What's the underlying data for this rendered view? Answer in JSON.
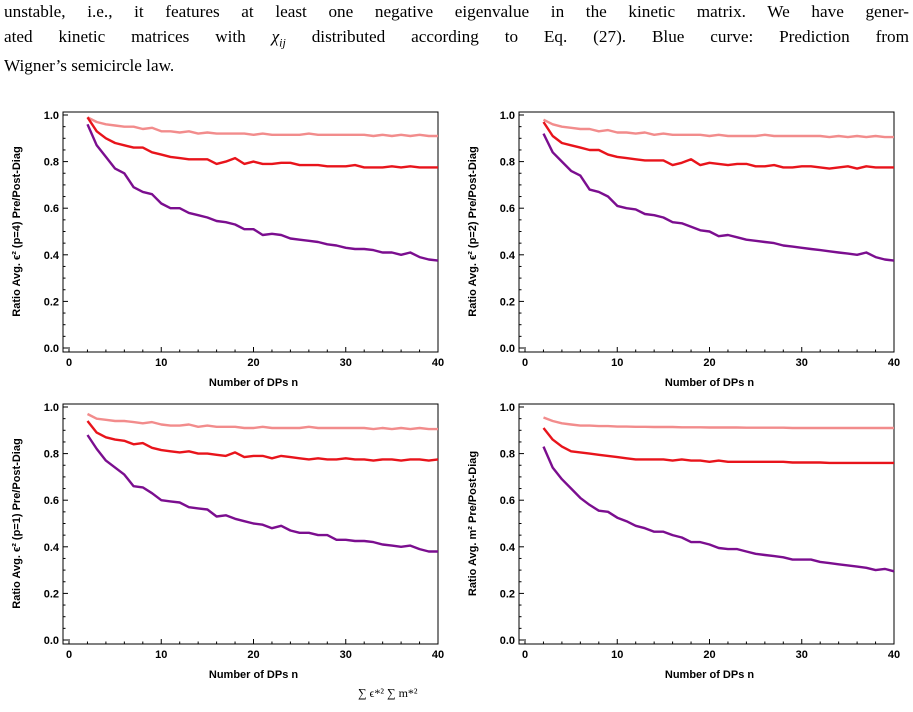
{
  "caption": {
    "line1": "unstable, i.e., it features at least one negative eigenvalue in the kinetic matrix. We have gener-",
    "line2_pre": "ated kinetic matrices with ",
    "line2_sym": "χ",
    "line2_sub": "ij",
    "line2_post": " distributed according to Eq. (27). Blue curve: Prediction from",
    "line3": "Wigner’s semicircle law."
  },
  "footer_fragment": "∑ ϵ*² ∑ m*²",
  "colors": {
    "light": "#f28c8c",
    "mid": "#e8141b",
    "dark": "#7b0e8f"
  },
  "chart_data": [
    {
      "type": "line",
      "xlabel": "",
      "ylabel": "Ratio Avg. ϵ² (p=4) Pre/Post-Diag",
      "xlim": [
        0,
        40
      ],
      "ylim": [
        0,
        1
      ],
      "xticks": [
        0,
        10,
        20,
        30,
        40
      ],
      "yticks": [
        0.0,
        0.2,
        0.4,
        0.6,
        0.8,
        1.0
      ],
      "x": [
        2,
        3,
        4,
        5,
        6,
        7,
        8,
        9,
        10,
        11,
        12,
        13,
        14,
        15,
        16,
        17,
        18,
        19,
        20,
        21,
        22,
        23,
        24,
        25,
        26,
        27,
        28,
        29,
        30,
        31,
        32,
        33,
        34,
        35,
        36,
        37,
        38,
        39,
        40
      ],
      "series": [
        {
          "values": [
            0.99,
            0.97,
            0.96,
            0.955,
            0.95,
            0.95,
            0.94,
            0.945,
            0.93,
            0.93,
            0.925,
            0.93,
            0.92,
            0.925,
            0.92,
            0.92,
            0.92,
            0.92,
            0.915,
            0.92,
            0.915,
            0.915,
            0.915,
            0.915,
            0.92,
            0.915,
            0.915,
            0.915,
            0.915,
            0.915,
            0.915,
            0.91,
            0.915,
            0.91,
            0.915,
            0.91,
            0.915,
            0.91,
            0.91
          ]
        },
        {
          "values": [
            0.99,
            0.93,
            0.9,
            0.88,
            0.87,
            0.86,
            0.86,
            0.84,
            0.83,
            0.82,
            0.815,
            0.81,
            0.81,
            0.81,
            0.79,
            0.8,
            0.815,
            0.79,
            0.8,
            0.79,
            0.79,
            0.795,
            0.795,
            0.785,
            0.785,
            0.785,
            0.78,
            0.78,
            0.78,
            0.785,
            0.775,
            0.775,
            0.775,
            0.78,
            0.775,
            0.78,
            0.775,
            0.775,
            0.775
          ]
        },
        {
          "values": [
            0.96,
            0.87,
            0.82,
            0.77,
            0.75,
            0.69,
            0.67,
            0.66,
            0.62,
            0.6,
            0.6,
            0.58,
            0.57,
            0.56,
            0.545,
            0.54,
            0.53,
            0.51,
            0.51,
            0.485,
            0.49,
            0.485,
            0.47,
            0.465,
            0.46,
            0.455,
            0.445,
            0.44,
            0.43,
            0.425,
            0.425,
            0.42,
            0.41,
            0.41,
            0.4,
            0.41,
            0.39,
            0.38,
            0.375
          ]
        }
      ]
    },
    {
      "type": "line",
      "xlabel": "",
      "ylabel": "Ratio Avg. ϵ² (p=2) Pre/Post-Diag",
      "xlim": [
        0,
        40
      ],
      "ylim": [
        0,
        1
      ],
      "xticks": [
        0,
        10,
        20,
        30,
        40
      ],
      "yticks": [
        0.0,
        0.2,
        0.4,
        0.6,
        0.8,
        1.0
      ],
      "x": [
        2,
        3,
        4,
        5,
        6,
        7,
        8,
        9,
        10,
        11,
        12,
        13,
        14,
        15,
        16,
        17,
        18,
        19,
        20,
        21,
        22,
        23,
        24,
        25,
        26,
        27,
        28,
        29,
        30,
        31,
        32,
        33,
        34,
        35,
        36,
        37,
        38,
        39,
        40
      ],
      "series": [
        {
          "values": [
            0.98,
            0.96,
            0.95,
            0.945,
            0.94,
            0.94,
            0.93,
            0.935,
            0.925,
            0.925,
            0.92,
            0.925,
            0.915,
            0.92,
            0.915,
            0.915,
            0.915,
            0.915,
            0.91,
            0.915,
            0.91,
            0.91,
            0.91,
            0.91,
            0.915,
            0.91,
            0.91,
            0.91,
            0.91,
            0.91,
            0.91,
            0.905,
            0.91,
            0.905,
            0.91,
            0.905,
            0.91,
            0.905,
            0.905
          ]
        },
        {
          "values": [
            0.97,
            0.91,
            0.88,
            0.87,
            0.86,
            0.85,
            0.85,
            0.83,
            0.82,
            0.815,
            0.81,
            0.805,
            0.805,
            0.805,
            0.785,
            0.795,
            0.81,
            0.785,
            0.795,
            0.79,
            0.785,
            0.79,
            0.79,
            0.78,
            0.78,
            0.785,
            0.775,
            0.775,
            0.78,
            0.78,
            0.775,
            0.77,
            0.775,
            0.78,
            0.77,
            0.78,
            0.775,
            0.775,
            0.775
          ]
        },
        {
          "values": [
            0.92,
            0.84,
            0.8,
            0.76,
            0.74,
            0.68,
            0.67,
            0.65,
            0.61,
            0.6,
            0.595,
            0.575,
            0.57,
            0.56,
            0.54,
            0.535,
            0.52,
            0.505,
            0.5,
            0.48,
            0.485,
            0.475,
            0.465,
            0.46,
            0.455,
            0.45,
            0.44,
            0.435,
            0.43,
            0.425,
            0.42,
            0.415,
            0.41,
            0.405,
            0.4,
            0.41,
            0.39,
            0.38,
            0.375
          ]
        }
      ]
    },
    {
      "type": "line",
      "xlabel": "Number of DPs n",
      "ylabel": "Ratio Avg. ϵ² (p=1) Pre/Post-Diag",
      "xlim": [
        0,
        40
      ],
      "ylim": [
        0,
        1
      ],
      "xticks": [
        0,
        10,
        20,
        30,
        40
      ],
      "yticks": [
        0.0,
        0.2,
        0.4,
        0.6,
        0.8,
        1.0
      ],
      "x": [
        2,
        3,
        4,
        5,
        6,
        7,
        8,
        9,
        10,
        11,
        12,
        13,
        14,
        15,
        16,
        17,
        18,
        19,
        20,
        21,
        22,
        23,
        24,
        25,
        26,
        27,
        28,
        29,
        30,
        31,
        32,
        33,
        34,
        35,
        36,
        37,
        38,
        39,
        40
      ],
      "series": [
        {
          "values": [
            0.97,
            0.95,
            0.945,
            0.94,
            0.94,
            0.935,
            0.93,
            0.935,
            0.925,
            0.92,
            0.92,
            0.925,
            0.915,
            0.92,
            0.915,
            0.915,
            0.915,
            0.91,
            0.91,
            0.915,
            0.91,
            0.91,
            0.91,
            0.91,
            0.915,
            0.91,
            0.91,
            0.91,
            0.91,
            0.91,
            0.91,
            0.905,
            0.91,
            0.905,
            0.91,
            0.905,
            0.91,
            0.905,
            0.905
          ]
        },
        {
          "values": [
            0.94,
            0.89,
            0.87,
            0.86,
            0.855,
            0.84,
            0.845,
            0.825,
            0.815,
            0.81,
            0.805,
            0.81,
            0.8,
            0.8,
            0.795,
            0.79,
            0.805,
            0.785,
            0.79,
            0.79,
            0.78,
            0.79,
            0.785,
            0.78,
            0.775,
            0.78,
            0.775,
            0.775,
            0.78,
            0.775,
            0.775,
            0.77,
            0.775,
            0.775,
            0.77,
            0.775,
            0.775,
            0.77,
            0.775
          ]
        },
        {
          "values": [
            0.88,
            0.82,
            0.77,
            0.74,
            0.71,
            0.66,
            0.655,
            0.63,
            0.6,
            0.595,
            0.59,
            0.57,
            0.565,
            0.56,
            0.53,
            0.535,
            0.52,
            0.51,
            0.5,
            0.495,
            0.48,
            0.49,
            0.47,
            0.46,
            0.46,
            0.45,
            0.45,
            0.43,
            0.43,
            0.425,
            0.425,
            0.42,
            0.41,
            0.405,
            0.4,
            0.405,
            0.39,
            0.38,
            0.38
          ]
        }
      ]
    },
    {
      "type": "line",
      "xlabel": "Number of DPs n",
      "ylabel": "Ratio Avg. m² Pre/Post-Diag",
      "xlim": [
        0,
        40
      ],
      "ylim": [
        0,
        1
      ],
      "xticks": [
        0,
        10,
        20,
        30,
        40
      ],
      "yticks": [
        0.0,
        0.2,
        0.4,
        0.6,
        0.8,
        1.0
      ],
      "x": [
        2,
        3,
        4,
        5,
        6,
        7,
        8,
        9,
        10,
        11,
        12,
        13,
        14,
        15,
        16,
        17,
        18,
        19,
        20,
        21,
        22,
        23,
        24,
        25,
        26,
        27,
        28,
        29,
        30,
        31,
        32,
        33,
        34,
        35,
        36,
        37,
        38,
        39,
        40
      ],
      "series": [
        {
          "values": [
            0.955,
            0.94,
            0.93,
            0.925,
            0.92,
            0.92,
            0.918,
            0.918,
            0.916,
            0.916,
            0.915,
            0.915,
            0.914,
            0.914,
            0.914,
            0.913,
            0.913,
            0.913,
            0.912,
            0.912,
            0.912,
            0.912,
            0.911,
            0.911,
            0.911,
            0.911,
            0.911,
            0.91,
            0.91,
            0.91,
            0.91,
            0.91,
            0.91,
            0.91,
            0.91,
            0.91,
            0.91,
            0.91,
            0.91
          ]
        },
        {
          "values": [
            0.91,
            0.86,
            0.83,
            0.81,
            0.805,
            0.8,
            0.795,
            0.79,
            0.785,
            0.78,
            0.775,
            0.775,
            0.775,
            0.775,
            0.77,
            0.775,
            0.77,
            0.77,
            0.765,
            0.77,
            0.765,
            0.765,
            0.765,
            0.765,
            0.765,
            0.765,
            0.765,
            0.762,
            0.762,
            0.762,
            0.762,
            0.76,
            0.76,
            0.76,
            0.76,
            0.76,
            0.76,
            0.76,
            0.76
          ]
        },
        {
          "values": [
            0.83,
            0.74,
            0.69,
            0.65,
            0.61,
            0.58,
            0.555,
            0.55,
            0.525,
            0.51,
            0.49,
            0.48,
            0.465,
            0.465,
            0.45,
            0.44,
            0.42,
            0.42,
            0.41,
            0.395,
            0.39,
            0.39,
            0.38,
            0.37,
            0.365,
            0.36,
            0.355,
            0.345,
            0.345,
            0.345,
            0.335,
            0.33,
            0.325,
            0.32,
            0.315,
            0.31,
            0.3,
            0.305,
            0.295
          ]
        }
      ]
    }
  ]
}
